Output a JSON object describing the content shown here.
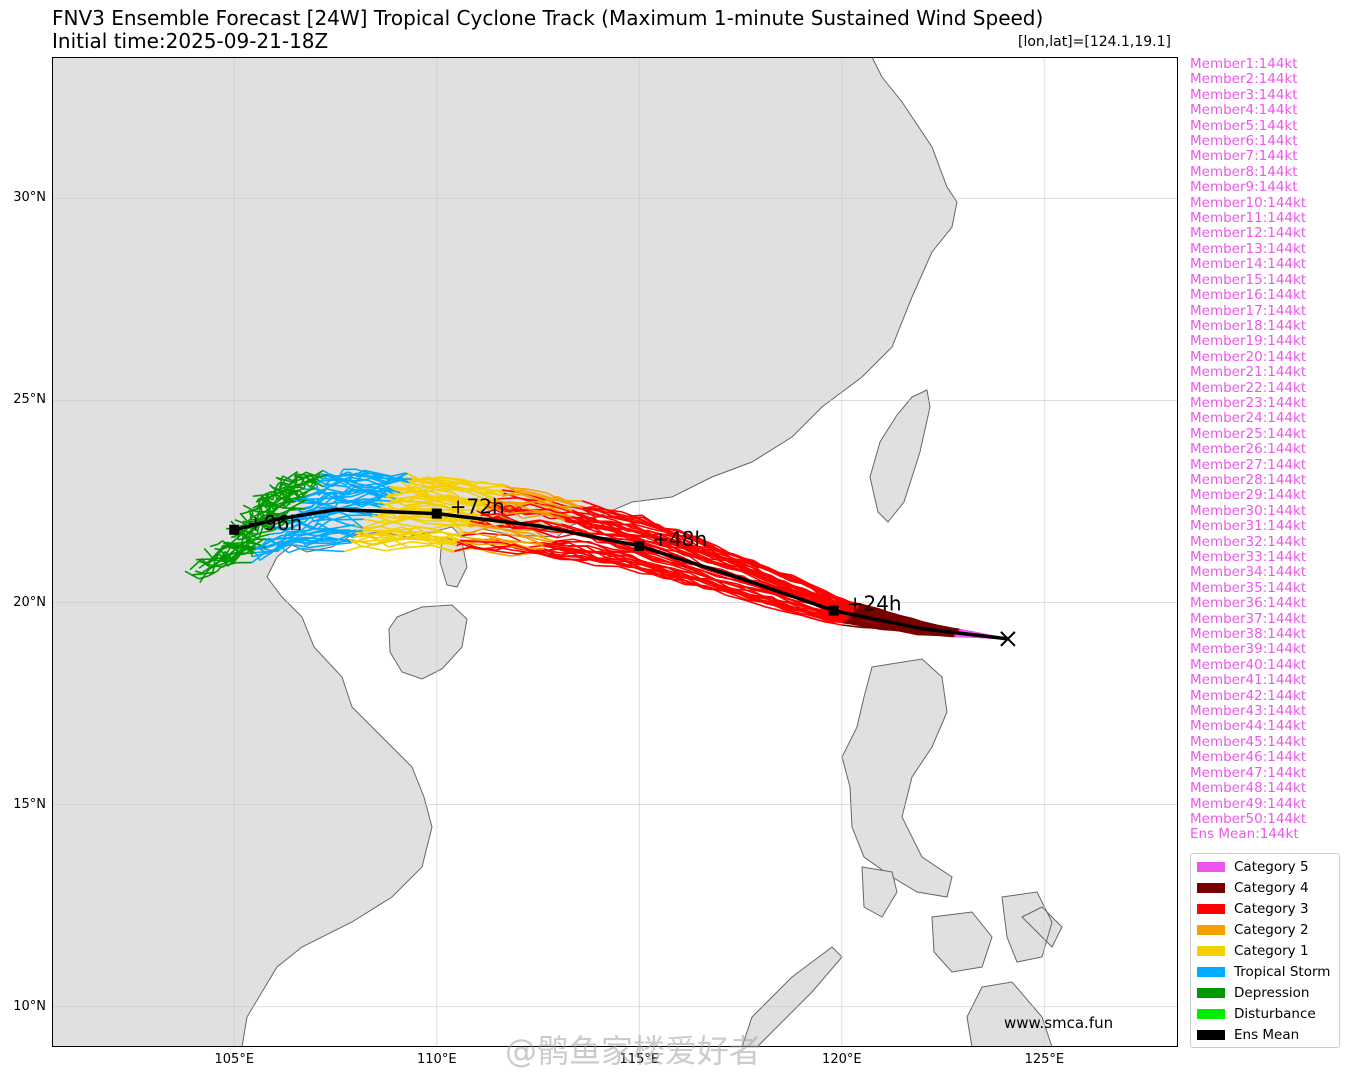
{
  "title": {
    "line1": "FNV3 Ensemble Forecast [24W] Tropical Cyclone Track (Maximum 1-minute Sustained Wind Speed)",
    "line2": "Initial time:2025-09-21-18Z",
    "coords": "[lon,lat]=[124.1,19.1]"
  },
  "axes": {
    "lon_range": [
      100.5,
      128.3
    ],
    "lat_range": [
      9.0,
      33.5
    ],
    "lat_ticks": [
      {
        "value": 30,
        "label": "30°N"
      },
      {
        "value": 25,
        "label": "25°N"
      },
      {
        "value": 20,
        "label": "20°N"
      },
      {
        "value": 15,
        "label": "15°N"
      },
      {
        "value": 10,
        "label": "10°N"
      }
    ],
    "lon_ticks": [
      {
        "value": 105,
        "label": "105°E"
      },
      {
        "value": 110,
        "label": "110°E"
      },
      {
        "value": 115,
        "label": "115°E"
      },
      {
        "value": 120,
        "label": "120°E"
      },
      {
        "value": 125,
        "label": "125°E"
      }
    ],
    "grid": true
  },
  "members": [
    "Member1:144kt",
    "Member2:144kt",
    "Member3:144kt",
    "Member4:144kt",
    "Member5:144kt",
    "Member6:144kt",
    "Member7:144kt",
    "Member8:144kt",
    "Member9:144kt",
    "Member10:144kt",
    "Member11:144kt",
    "Member12:144kt",
    "Member13:144kt",
    "Member14:144kt",
    "Member15:144kt",
    "Member16:144kt",
    "Member17:144kt",
    "Member18:144kt",
    "Member19:144kt",
    "Member20:144kt",
    "Member21:144kt",
    "Member22:144kt",
    "Member23:144kt",
    "Member24:144kt",
    "Member25:144kt",
    "Member26:144kt",
    "Member27:144kt",
    "Member28:144kt",
    "Member29:144kt",
    "Member30:144kt",
    "Member31:144kt",
    "Member32:144kt",
    "Member33:144kt",
    "Member34:144kt",
    "Member35:144kt",
    "Member36:144kt",
    "Member37:144kt",
    "Member38:144kt",
    "Member39:144kt",
    "Member40:144kt",
    "Member41:144kt",
    "Member42:144kt",
    "Member43:144kt",
    "Member44:144kt",
    "Member45:144kt",
    "Member46:144kt",
    "Member47:144kt",
    "Member48:144kt",
    "Member49:144kt",
    "Member50:144kt",
    "Ens Mean:144kt"
  ],
  "legend": [
    {
      "label": "Category 5",
      "color": "#ee55ee"
    },
    {
      "label": "Category 4",
      "color": "#7a0000"
    },
    {
      "label": "Category 3",
      "color": "#ff0000"
    },
    {
      "label": "Category 2",
      "color": "#f5a000"
    },
    {
      "label": "Category 1",
      "color": "#f5d000"
    },
    {
      "label": "Tropical Storm",
      "color": "#00aaff"
    },
    {
      "label": "Depression",
      "color": "#009900"
    },
    {
      "label": "Disturbance",
      "color": "#00ee00"
    },
    {
      "label": "Ens Mean",
      "color": "#000000"
    }
  ],
  "ens_mean": {
    "start": {
      "lon": 124.1,
      "lat": 19.1
    },
    "points": [
      {
        "lon": 124.1,
        "lat": 19.1
      },
      {
        "lon": 122.0,
        "lat": 19.35
      },
      {
        "lon": 119.8,
        "lat": 19.8
      },
      {
        "lon": 117.5,
        "lat": 20.6
      },
      {
        "lon": 115.0,
        "lat": 21.4
      },
      {
        "lon": 112.5,
        "lat": 21.9
      },
      {
        "lon": 110.0,
        "lat": 22.2
      },
      {
        "lon": 107.5,
        "lat": 22.3
      },
      {
        "lon": 106.0,
        "lat": 22.05
      },
      {
        "lon": 105.0,
        "lat": 21.8
      }
    ],
    "markers": [
      {
        "lon": 119.8,
        "lat": 19.8,
        "label": "+24h"
      },
      {
        "lon": 115.0,
        "lat": 21.4,
        "label": "+48h"
      },
      {
        "lon": 110.0,
        "lat": 22.2,
        "label": "+72h"
      },
      {
        "lon": 105.0,
        "lat": 21.8,
        "label": "+96h"
      }
    ]
  },
  "watermark": "www.smca.fun",
  "weibo_mark": "@鹘鱼家楼爱好者"
}
